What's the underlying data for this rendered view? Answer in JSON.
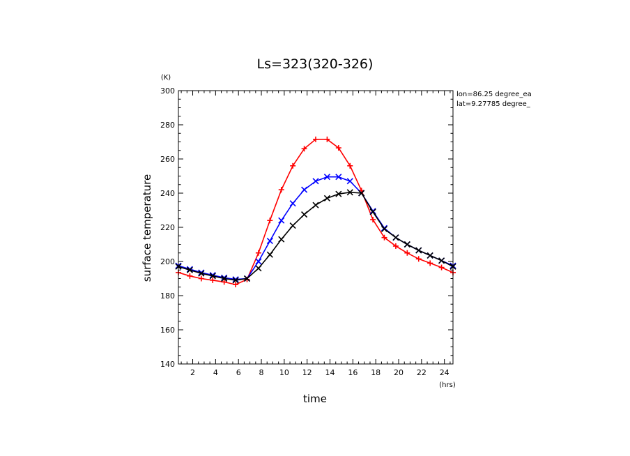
{
  "chart_data": {
    "type": "line",
    "title": "Ls=323(320-326)",
    "xlabel": "time",
    "ylabel": "surface temperature",
    "x_unit": "(hrs)",
    "y_unit": "(K)",
    "xlim": [
      0.75,
      24.75
    ],
    "ylim": [
      140,
      300
    ],
    "x_ticks": [
      2,
      4,
      6,
      8,
      10,
      12,
      14,
      16,
      18,
      20,
      22,
      24
    ],
    "y_ticks": [
      140,
      160,
      180,
      200,
      220,
      240,
      260,
      280,
      300
    ],
    "annotations": [
      "lon=86.25 degree_ea",
      "lat=9.27785 degree_"
    ],
    "grid": false,
    "x": [
      0.75,
      1.75,
      2.75,
      3.75,
      4.75,
      5.75,
      6.75,
      7.75,
      8.75,
      9.75,
      10.75,
      11.75,
      12.75,
      13.75,
      14.75,
      15.75,
      16.75,
      17.75,
      18.75,
      19.75,
      20.75,
      21.75,
      22.75,
      23.75,
      24.75
    ],
    "series": [
      {
        "color": "#ff0000",
        "marker": "+",
        "values": [
          193.5,
          191.5,
          190,
          189,
          188,
          186.5,
          189.5,
          205,
          224,
          242,
          256,
          266,
          271.5,
          271.5,
          266.5,
          256,
          241.5,
          224.5,
          214,
          209,
          205,
          201.5,
          199,
          196.5,
          193.5
        ]
      },
      {
        "color": "#0000ff",
        "marker": "x",
        "values": [
          197.5,
          195.5,
          193.5,
          192,
          190.5,
          189.5,
          190,
          200,
          212,
          224,
          234,
          242,
          247,
          249.5,
          249.5,
          247,
          240,
          229.5,
          219.5,
          214,
          210,
          206.5,
          203.5,
          200.5,
          197.5
        ]
      },
      {
        "color": "#000000",
        "marker": "x",
        "values": [
          197,
          195,
          193,
          191.5,
          190,
          189,
          190,
          196,
          204,
          213,
          221,
          227.5,
          233,
          237,
          239.5,
          240.5,
          240,
          229,
          219,
          214,
          210,
          206.5,
          203.5,
          200.5,
          197
        ]
      }
    ]
  }
}
